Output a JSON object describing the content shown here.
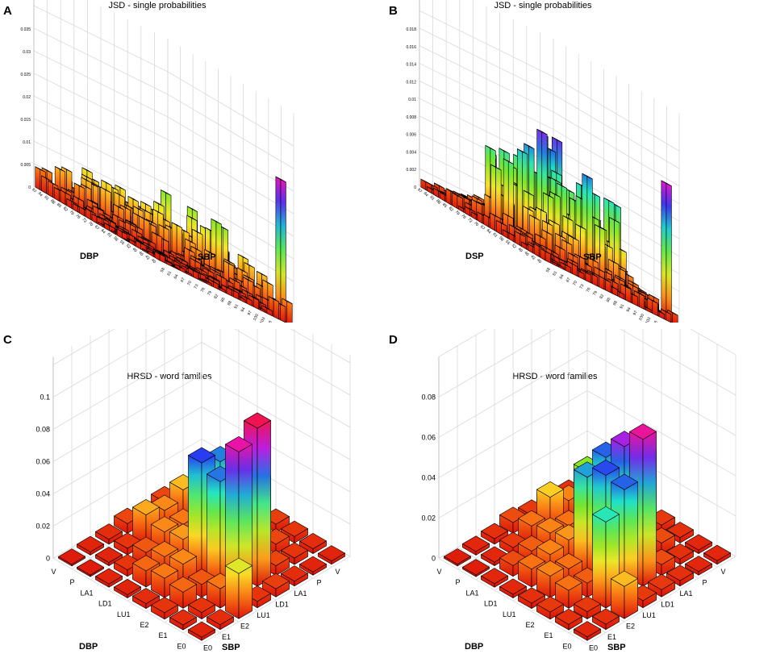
{
  "chart_data": [
    {
      "id": "A",
      "type": "bar3d",
      "panel_label": "A",
      "title": "JSD - single probabilities",
      "xlabel": "SBP",
      "ylabel": "DBP",
      "zlim": [
        0,
        0.035
      ],
      "z_ticks": [
        "0",
        "0.005",
        "0.01",
        "0.015",
        "0.02",
        "0.025",
        "0.03",
        "0.035"
      ],
      "grid_size": 20,
      "x_tick_labels": [
        "58",
        "61",
        "64",
        "67",
        "70",
        "73",
        "76",
        "79",
        "82",
        "85",
        "88",
        "91",
        "94",
        "97",
        "100",
        "103",
        "106",
        "109",
        "112",
        "115"
      ],
      "y_tick_labels": [
        "40",
        "43",
        "46",
        "49",
        "52",
        "55",
        "58",
        "61",
        "64",
        "67",
        "70",
        "73",
        "76",
        "79",
        "82",
        "85",
        "88",
        "91",
        "94",
        "97"
      ],
      "max_value": 0.031,
      "description_values": "dense grid of small JSD values mostly below 0.01; one tall peak near 0.031 at the far SBP corner"
    },
    {
      "id": "B",
      "type": "bar3d",
      "panel_label": "B",
      "title": "JSD - single probabilities",
      "xlabel": "SBP",
      "ylabel": "DSP",
      "zlim": [
        0,
        0.018
      ],
      "z_ticks": [
        "0",
        "0.002",
        "0.004",
        "0.006",
        "0.008",
        "0.01",
        "0.012",
        "0.014",
        "0.016",
        "0.018"
      ],
      "grid_size": 20,
      "x_tick_labels": [
        "58",
        "61",
        "64",
        "67",
        "70",
        "73",
        "76",
        "79",
        "82",
        "85",
        "88",
        "91",
        "94",
        "97",
        "100",
        "103",
        "106",
        "109",
        "112",
        "115"
      ],
      "y_tick_labels": [
        "40",
        "43",
        "46",
        "49",
        "52",
        "55",
        "58",
        "61",
        "64",
        "67",
        "70",
        "73",
        "76",
        "79",
        "82",
        "85",
        "88",
        "91",
        "94",
        "97"
      ],
      "max_value": 0.0155
    },
    {
      "id": "C",
      "type": "bar3d",
      "panel_label": "C",
      "title": "HRSD - word families",
      "xlabel": "SBP",
      "ylabel": "DBP",
      "zlim": [
        0,
        0.1
      ],
      "z_ticks": [
        "0",
        "0.02",
        "0.04",
        "0.06",
        "0.08",
        "0.1"
      ],
      "categories": [
        "E0",
        "E1",
        "E2",
        "LU1",
        "LD1",
        "LA1",
        "P",
        "V"
      ],
      "values": [
        [
          0.002,
          0.003,
          0.028,
          0.004,
          0.005,
          0.003,
          0.002,
          0.002
        ],
        [
          0.003,
          0.004,
          0.012,
          0.09,
          0.098,
          0.006,
          0.004,
          0.003
        ],
        [
          0.004,
          0.01,
          0.008,
          0.065,
          0.062,
          0.05,
          0.006,
          0.004
        ],
        [
          0.003,
          0.012,
          0.014,
          0.07,
          0.064,
          0.036,
          0.03,
          0.005
        ],
        [
          0.002,
          0.01,
          0.012,
          0.016,
          0.03,
          0.034,
          0.022,
          0.006
        ],
        [
          0.002,
          0.004,
          0.008,
          0.014,
          0.012,
          0.02,
          0.014,
          0.004
        ],
        [
          0.001,
          0.002,
          0.004,
          0.018,
          0.014,
          0.02,
          0.008,
          0.003
        ],
        [
          0.001,
          0.002,
          0.003,
          0.006,
          0.004,
          0.006,
          0.003,
          0.002
        ]
      ]
    },
    {
      "id": "D",
      "type": "bar3d",
      "panel_label": "D",
      "title": "HRSD - word families",
      "xlabel": "SBP",
      "ylabel": "DBP",
      "zlim": [
        0,
        0.09
      ],
      "z_ticks": [
        "0",
        "0.02",
        "0.04",
        "0.06",
        "0.08"
      ],
      "categories": [
        "E0",
        "E1",
        "E2",
        "LU1",
        "LD1",
        "LA1",
        "P",
        "V"
      ],
      "values": [
        [
          0.002,
          0.003,
          0.018,
          0.004,
          0.004,
          0.003,
          0.002,
          0.002
        ],
        [
          0.003,
          0.004,
          0.048,
          0.06,
          0.082,
          0.006,
          0.003,
          0.002
        ],
        [
          0.004,
          0.01,
          0.008,
          0.062,
          0.072,
          0.05,
          0.006,
          0.003
        ],
        [
          0.003,
          0.012,
          0.01,
          0.055,
          0.06,
          0.036,
          0.048,
          0.004
        ],
        [
          0.002,
          0.01,
          0.012,
          0.014,
          0.026,
          0.036,
          0.034,
          0.03
        ],
        [
          0.002,
          0.006,
          0.008,
          0.012,
          0.01,
          0.034,
          0.016,
          0.026
        ],
        [
          0.001,
          0.002,
          0.004,
          0.01,
          0.02,
          0.012,
          0.022,
          0.004
        ],
        [
          0.001,
          0.002,
          0.003,
          0.006,
          0.004,
          0.006,
          0.003,
          0.002
        ]
      ]
    }
  ]
}
